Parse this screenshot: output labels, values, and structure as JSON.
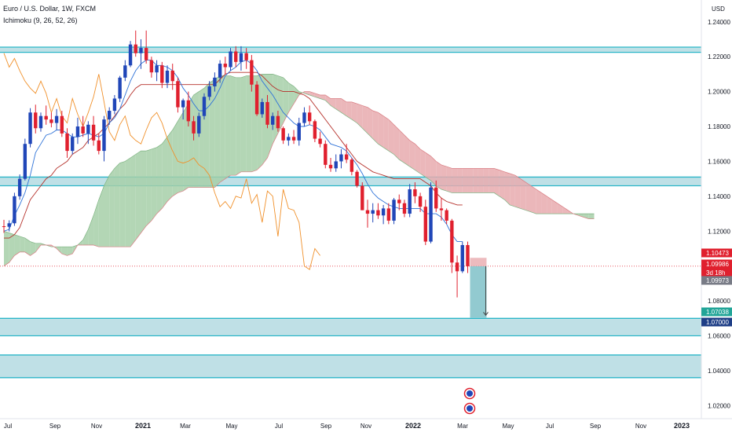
{
  "header": {
    "symbol": "Euro / U.S. Dollar, 1W, FXCM",
    "indicator": "Ichimoku (9, 26, 52, 26)",
    "currency": "USD"
  },
  "colors": {
    "up": "#2046b8",
    "down": "#e0202e",
    "zone_fill": "#a9d6de",
    "zone_line": "#2bb6c8",
    "cloud_bull": "#a6cfa8",
    "cloud_bear": "#e8aaae",
    "tenkan": "#2f73d8",
    "kijun": "#b5302a",
    "chikou": "#f0902a"
  },
  "chart_data": {
    "type": "candlestick",
    "title": "Euro / U.S. Dollar, 1W, FXCM",
    "y_axis": {
      "unit": "USD",
      "ylim": [
        1.0125,
        1.2525
      ],
      "ticks": [
        "1.24000",
        "1.22000",
        "1.20000",
        "1.18000",
        "1.16000",
        "1.14000",
        "1.12000",
        "1.10000",
        "1.08000",
        "1.06000",
        "1.04000",
        "1.02000"
      ]
    },
    "x_axis": {
      "ticks": [
        "Jul",
        "Sep",
        "Nov",
        "2021",
        "Mar",
        "May",
        "Jul",
        "Sep",
        "Nov",
        "2022",
        "Mar",
        "May",
        "Jul",
        "Sep",
        "Nov",
        "2023"
      ],
      "bold_ticks": [
        "2021",
        "2022",
        "2023"
      ]
    },
    "candles": [
      [
        1.1228,
        1.1265,
        1.119,
        1.1225
      ],
      [
        1.1225,
        1.1262,
        1.1198,
        1.1245
      ],
      [
        1.1245,
        1.142,
        1.123,
        1.14
      ],
      [
        1.14,
        1.1525,
        1.138,
        1.15
      ],
      [
        1.15,
        1.173,
        1.149,
        1.17
      ],
      [
        1.17,
        1.1905,
        1.168,
        1.188
      ],
      [
        1.188,
        1.1925,
        1.176,
        1.179
      ],
      [
        1.179,
        1.188,
        1.177,
        1.186
      ],
      [
        1.186,
        1.192,
        1.181,
        1.184
      ],
      [
        1.184,
        1.188,
        1.1795,
        1.182
      ],
      [
        1.182,
        1.19,
        1.178,
        1.186
      ],
      [
        1.186,
        1.189,
        1.174,
        1.176
      ],
      [
        1.176,
        1.179,
        1.162,
        1.166
      ],
      [
        1.166,
        1.176,
        1.164,
        1.174
      ],
      [
        1.174,
        1.185,
        1.17,
        1.18
      ],
      [
        1.18,
        1.186,
        1.174,
        1.176
      ],
      [
        1.176,
        1.183,
        1.17,
        1.181
      ],
      [
        1.181,
        1.186,
        1.169,
        1.172
      ],
      [
        1.172,
        1.176,
        1.164,
        1.166
      ],
      [
        1.166,
        1.186,
        1.16,
        1.184
      ],
      [
        1.184,
        1.191,
        1.181,
        1.189
      ],
      [
        1.189,
        1.198,
        1.187,
        1.196
      ],
      [
        1.196,
        1.209,
        1.194,
        1.208
      ],
      [
        1.208,
        1.218,
        1.206,
        1.215
      ],
      [
        1.215,
        1.229,
        1.214,
        1.227
      ],
      [
        1.227,
        1.235,
        1.22,
        1.222
      ],
      [
        1.222,
        1.23,
        1.213,
        1.225
      ],
      [
        1.225,
        1.235,
        1.216,
        1.218
      ],
      [
        1.218,
        1.22,
        1.208,
        1.211
      ],
      [
        1.211,
        1.218,
        1.206,
        1.215
      ],
      [
        1.215,
        1.217,
        1.202,
        1.205
      ],
      [
        1.205,
        1.215,
        1.202,
        1.212
      ],
      [
        1.212,
        1.216,
        1.201,
        1.206
      ],
      [
        1.206,
        1.208,
        1.188,
        1.191
      ],
      [
        1.191,
        1.196,
        1.184,
        1.195
      ],
      [
        1.195,
        1.2,
        1.18,
        1.183
      ],
      [
        1.183,
        1.186,
        1.172,
        1.176
      ],
      [
        1.176,
        1.188,
        1.174,
        1.186
      ],
      [
        1.186,
        1.199,
        1.184,
        1.197
      ],
      [
        1.197,
        1.206,
        1.195,
        1.203
      ],
      [
        1.203,
        1.211,
        1.2,
        1.208
      ],
      [
        1.208,
        1.218,
        1.205,
        1.216
      ],
      [
        1.216,
        1.22,
        1.21,
        1.214
      ],
      [
        1.214,
        1.225,
        1.212,
        1.223
      ],
      [
        1.223,
        1.226,
        1.214,
        1.217
      ],
      [
        1.217,
        1.226,
        1.212,
        1.222
      ],
      [
        1.222,
        1.225,
        1.213,
        1.218
      ],
      [
        1.218,
        1.221,
        1.2,
        1.204
      ],
      [
        1.204,
        1.206,
        1.186,
        1.187
      ],
      [
        1.187,
        1.196,
        1.185,
        1.194
      ],
      [
        1.194,
        1.198,
        1.179,
        1.181
      ],
      [
        1.181,
        1.188,
        1.178,
        1.186
      ],
      [
        1.186,
        1.189,
        1.177,
        1.179
      ],
      [
        1.179,
        1.18,
        1.17,
        1.172
      ],
      [
        1.172,
        1.176,
        1.169,
        1.174
      ],
      [
        1.174,
        1.178,
        1.17,
        1.172
      ],
      [
        1.172,
        1.185,
        1.169,
        1.182
      ],
      [
        1.182,
        1.191,
        1.18,
        1.188
      ],
      [
        1.188,
        1.192,
        1.181,
        1.183
      ],
      [
        1.183,
        1.184,
        1.171,
        1.173
      ],
      [
        1.173,
        1.177,
        1.168,
        1.17
      ],
      [
        1.17,
        1.172,
        1.156,
        1.158
      ],
      [
        1.158,
        1.162,
        1.154,
        1.156
      ],
      [
        1.156,
        1.164,
        1.154,
        1.16
      ],
      [
        1.16,
        1.167,
        1.156,
        1.164
      ],
      [
        1.164,
        1.17,
        1.159,
        1.161
      ],
      [
        1.161,
        1.162,
        1.152,
        1.154
      ],
      [
        1.154,
        1.155,
        1.145,
        1.146
      ],
      [
        1.146,
        1.148,
        1.132,
        1.132
      ],
      [
        1.132,
        1.138,
        1.122,
        1.13
      ],
      [
        1.13,
        1.136,
        1.125,
        1.132
      ],
      [
        1.132,
        1.136,
        1.127,
        1.129
      ],
      [
        1.129,
        1.135,
        1.124,
        1.133
      ],
      [
        1.133,
        1.136,
        1.124,
        1.126
      ],
      [
        1.126,
        1.139,
        1.124,
        1.138
      ],
      [
        1.138,
        1.141,
        1.132,
        1.136
      ],
      [
        1.136,
        1.138,
        1.128,
        1.13
      ],
      [
        1.13,
        1.147,
        1.128,
        1.144
      ],
      [
        1.144,
        1.148,
        1.136,
        1.14
      ],
      [
        1.14,
        1.142,
        1.131,
        1.134
      ],
      [
        1.134,
        1.138,
        1.112,
        1.114
      ],
      [
        1.114,
        1.148,
        1.113,
        1.145
      ],
      [
        1.145,
        1.149,
        1.131,
        1.133
      ],
      [
        1.133,
        1.139,
        1.126,
        1.132
      ],
      [
        1.132,
        1.133,
        1.124,
        1.126
      ],
      [
        1.126,
        1.127,
        1.096,
        1.102
      ],
      [
        1.102,
        1.106,
        1.082,
        1.097
      ],
      [
        1.097,
        1.114,
        1.096,
        1.112
      ],
      [
        1.112,
        1.114,
        1.096,
        1.0999
      ]
    ],
    "tenkan_sen": [
      1.12,
      1.121,
      1.129,
      1.135,
      1.142,
      1.152,
      1.165,
      1.17,
      1.175,
      1.176,
      1.178,
      1.178,
      1.176,
      1.174,
      1.174,
      1.175,
      1.176,
      1.175,
      1.174,
      1.176,
      1.182,
      1.185,
      1.19,
      1.198,
      1.206,
      1.212,
      1.216,
      1.218,
      1.218,
      1.215,
      1.215,
      1.214,
      1.212,
      1.208,
      1.202,
      1.198,
      1.193,
      1.189,
      1.189,
      1.192,
      1.196,
      1.202,
      1.209,
      1.212,
      1.214,
      1.217,
      1.218,
      1.216,
      1.212,
      1.206,
      1.202,
      1.198,
      1.193,
      1.188,
      1.185,
      1.182,
      1.18,
      1.18,
      1.181,
      1.18,
      1.178,
      1.174,
      1.17,
      1.169,
      1.168,
      1.166,
      1.162,
      1.158,
      1.153,
      1.147,
      1.142,
      1.139,
      1.137,
      1.135,
      1.134,
      1.133,
      1.133,
      1.133,
      1.133,
      1.133,
      1.13,
      1.13,
      1.13,
      1.128,
      1.124,
      1.118,
      1.114,
      1.114
    ],
    "kijun_sen": [
      1.116,
      1.116,
      1.118,
      1.122,
      1.13,
      1.138,
      1.142,
      1.146,
      1.15,
      1.152,
      1.156,
      1.158,
      1.16,
      1.164,
      1.166,
      1.168,
      1.172,
      1.174,
      1.176,
      1.179,
      1.182,
      1.186,
      1.19,
      1.193,
      1.198,
      1.202,
      1.204,
      1.204,
      1.204,
      1.204,
      1.204,
      1.204,
      1.204,
      1.204,
      1.204,
      1.204,
      1.204,
      1.204,
      1.204,
      1.204,
      1.204,
      1.207,
      1.21,
      1.211,
      1.211,
      1.211,
      1.211,
      1.211,
      1.211,
      1.209,
      1.206,
      1.203,
      1.201,
      1.2,
      1.2,
      1.2,
      1.199,
      1.198,
      1.196,
      1.192,
      1.188,
      1.184,
      1.18,
      1.176,
      1.172,
      1.168,
      1.164,
      1.16,
      1.158,
      1.156,
      1.154,
      1.153,
      1.152,
      1.151,
      1.15,
      1.15,
      1.15,
      1.15,
      1.15,
      1.15,
      1.148,
      1.146,
      1.142,
      1.139,
      1.137,
      1.136,
      1.135,
      1.135
    ],
    "chikou_span": [
      1.222,
      1.214,
      1.219,
      1.212,
      1.206,
      1.202,
      1.199,
      1.206,
      1.199,
      1.188,
      1.196,
      1.186,
      1.182,
      1.196,
      1.187,
      1.18,
      1.188,
      1.197,
      1.21,
      1.194,
      1.177,
      1.172,
      1.181,
      1.186,
      1.175,
      1.172,
      1.17,
      1.178,
      1.185,
      1.188,
      1.182,
      1.173,
      1.166,
      1.16,
      1.159,
      1.16,
      1.162,
      1.158,
      1.156,
      1.152,
      1.142,
      1.134,
      1.137,
      1.133,
      1.14,
      1.139,
      1.15,
      1.136,
      1.141,
      1.125,
      1.143,
      1.14,
      1.117,
      1.144,
      1.133,
      1.132,
      1.125,
      1.1,
      1.098,
      1.11,
      1.106
    ],
    "cloud_span_a": [
      1.12,
      1.119,
      1.118,
      1.117,
      1.116,
      1.114,
      1.113,
      1.113,
      1.112,
      1.111,
      1.111,
      1.111,
      1.111,
      1.111,
      1.112,
      1.115,
      1.121,
      1.129,
      1.138,
      1.146,
      1.152,
      1.156,
      1.159,
      1.16,
      1.162,
      1.164,
      1.166,
      1.166,
      1.167,
      1.168,
      1.17,
      1.174,
      1.178,
      1.183,
      1.188,
      1.193,
      1.198,
      1.2,
      1.202,
      1.205,
      1.207,
      1.209,
      1.209,
      1.209,
      1.208,
      1.208,
      1.209,
      1.209,
      1.209,
      1.21,
      1.21,
      1.21,
      1.209,
      1.208,
      1.205,
      1.203,
      1.2,
      1.199,
      1.198,
      1.197,
      1.196,
      1.195,
      1.192,
      1.19,
      1.188,
      1.186,
      1.184,
      1.182,
      1.179,
      1.176,
      1.173,
      1.17,
      1.168,
      1.166,
      1.164,
      1.161,
      1.159,
      1.157,
      1.155,
      1.153,
      1.151,
      1.149,
      1.146,
      1.144,
      1.143,
      1.142,
      1.142,
      1.142,
      1.142,
      1.142,
      1.142,
      1.142,
      1.142,
      1.142,
      1.14,
      1.138,
      1.135,
      1.134,
      1.133,
      1.132,
      1.131,
      1.13,
      1.13,
      1.13,
      1.13,
      1.13,
      1.13,
      1.13,
      1.13,
      1.13,
      1.13,
      1.13,
      1.13
    ],
    "cloud_span_b": [
      1.1,
      1.102,
      1.106,
      1.108,
      1.108,
      1.106,
      1.108,
      1.112,
      1.112,
      1.112,
      1.11,
      1.107,
      1.106,
      1.107,
      1.112,
      1.112,
      1.112,
      1.112,
      1.111,
      1.111,
      1.111,
      1.111,
      1.111,
      1.111,
      1.111,
      1.115,
      1.119,
      1.123,
      1.126,
      1.13,
      1.133,
      1.137,
      1.14,
      1.142,
      1.143,
      1.145,
      1.145,
      1.145,
      1.145,
      1.145,
      1.145,
      1.148,
      1.15,
      1.152,
      1.152,
      1.154,
      1.154,
      1.154,
      1.155,
      1.158,
      1.162,
      1.17,
      1.176,
      1.182,
      1.188,
      1.193,
      1.198,
      1.2,
      1.2,
      1.199,
      1.198,
      1.198,
      1.196,
      1.196,
      1.196,
      1.194,
      1.194,
      1.193,
      1.192,
      1.191,
      1.189,
      1.188,
      1.186,
      1.184,
      1.181,
      1.178,
      1.175,
      1.172,
      1.17,
      1.167,
      1.165,
      1.163,
      1.16,
      1.158,
      1.157,
      1.156,
      1.156,
      1.156,
      1.156,
      1.156,
      1.156,
      1.156,
      1.156,
      1.156,
      1.155,
      1.154,
      1.153,
      1.152,
      1.15,
      1.148,
      1.146,
      1.144,
      1.142,
      1.14,
      1.138,
      1.136,
      1.134,
      1.132,
      1.13,
      1.129,
      1.128,
      1.127,
      1.127
    ],
    "zones": [
      {
        "from": 1.2225,
        "to": 1.2255
      },
      {
        "from": 1.146,
        "to": 1.151
      },
      {
        "from": 1.06,
        "to": 1.07
      },
      {
        "from": 1.036,
        "to": 1.049
      }
    ],
    "current_price_line": 1.0999,
    "projection": {
      "from": 1.0999,
      "to": 1.0704,
      "target": 1.07
    },
    "price_tags": [
      {
        "value": 1.10473,
        "text": "1.10473",
        "kind": "down",
        "countdown": ""
      },
      {
        "value": 1.09986,
        "text": "1.09986",
        "kind": "down",
        "countdown": "3d 18h"
      },
      {
        "value": 1.09973,
        "text": "1.09973",
        "kind": "neutral",
        "countdown": ""
      },
      {
        "value": 1.07038,
        "text": "1.07038",
        "kind": "teal",
        "countdown": ""
      },
      {
        "value": 1.07,
        "text": "1.07000",
        "kind": "navy",
        "countdown": ""
      }
    ]
  }
}
